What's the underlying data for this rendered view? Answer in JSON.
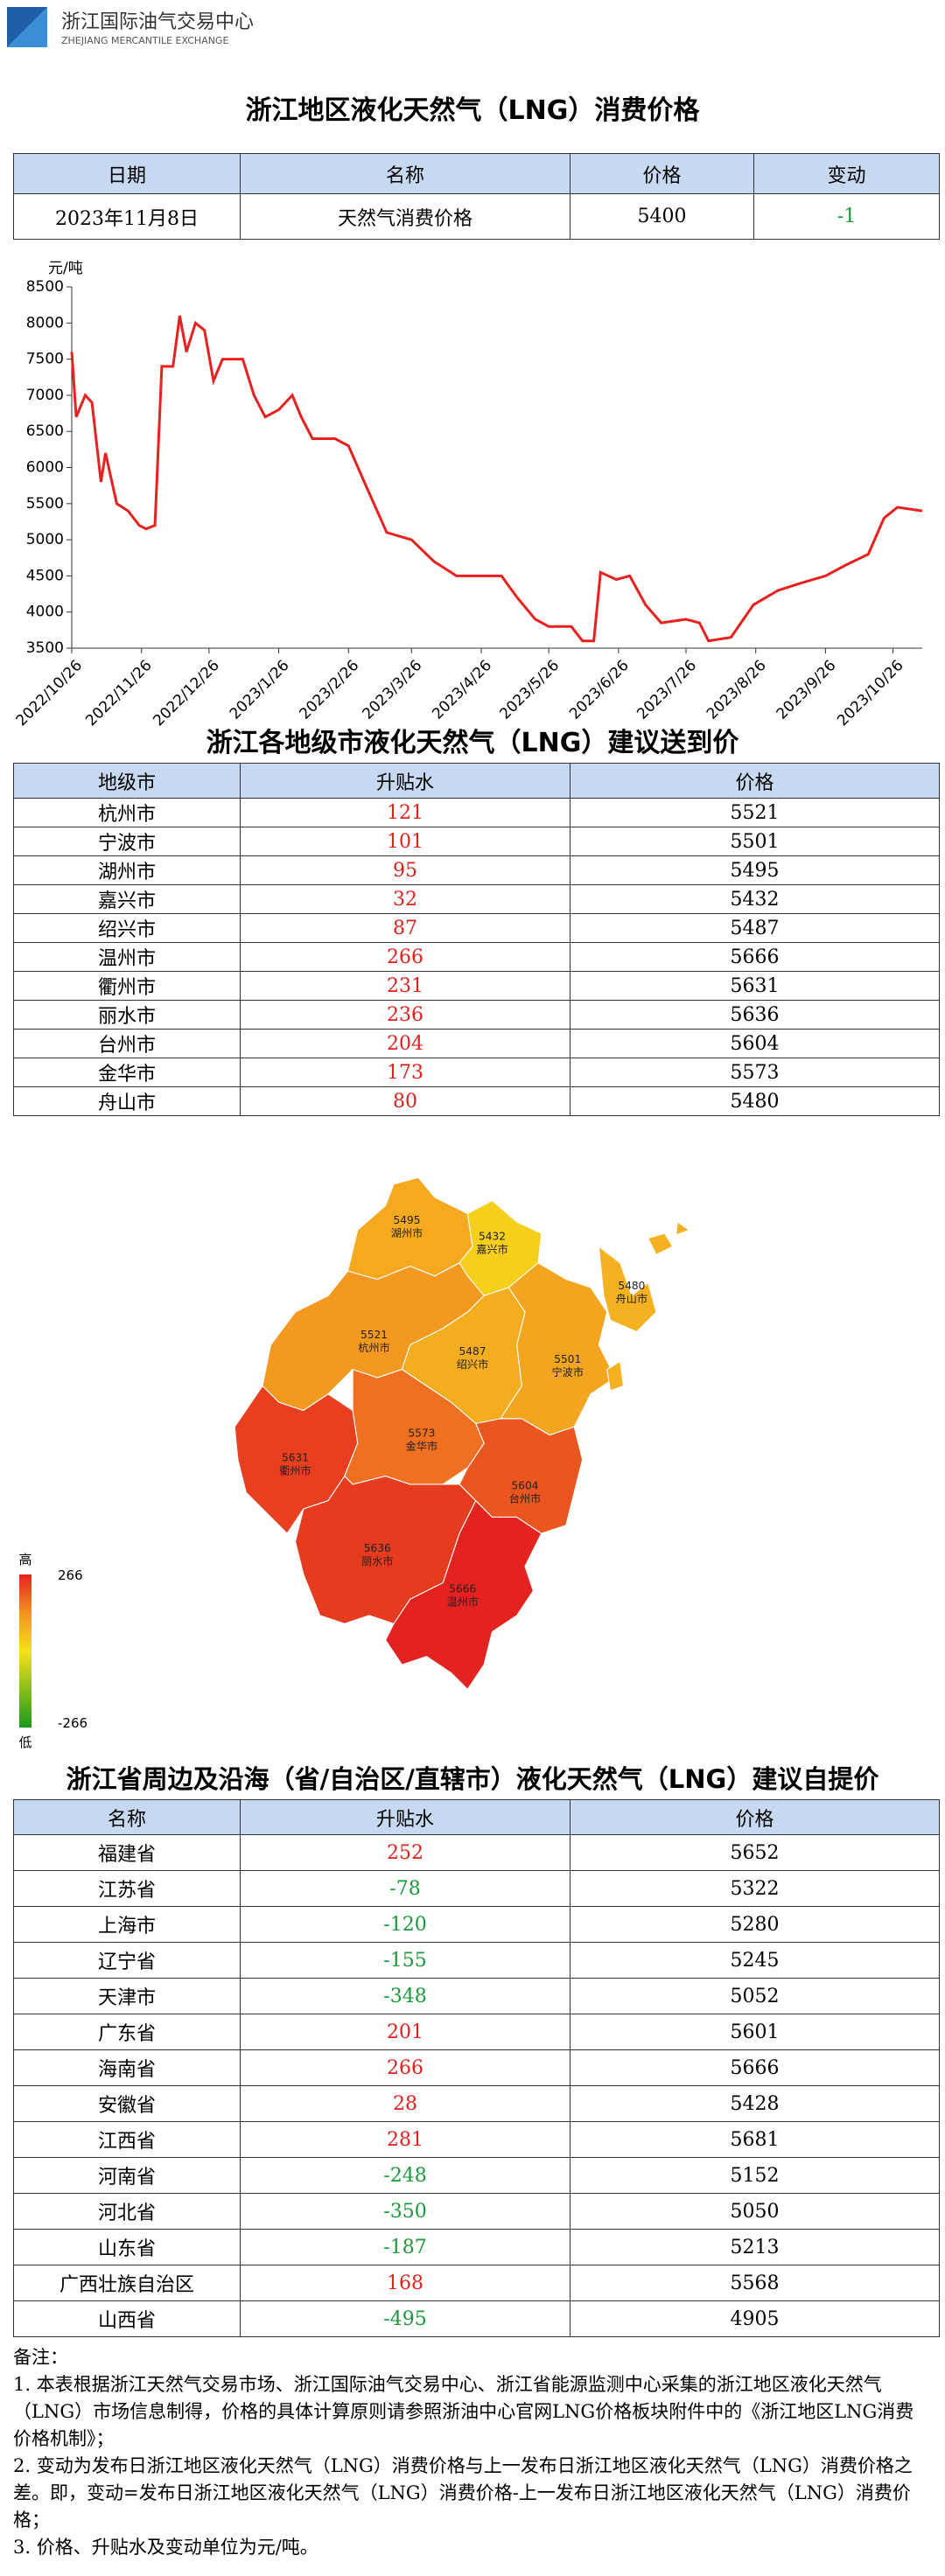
{
  "header": {
    "org": "浙江国际油气交易中心",
    "org_en": "ZHEJIANG MERCANTILE EXCHANGE"
  },
  "title1": "浙江地区液化天然气（LNG）消费价格",
  "table1": {
    "headers": [
      "日期",
      "名称",
      "价格",
      "变动"
    ],
    "rows": [
      [
        "2023年11月8日",
        "天然气消费价格",
        5400,
        -1
      ]
    ]
  },
  "chart_data": {
    "type": "line",
    "y_label": "元/吨",
    "color": "#e8201e",
    "x": [
      "2022/10/26",
      "2022/10/28",
      "2022/11/1",
      "2022/11/4",
      "2022/11/8",
      "2022/11/10",
      "2022/11/15",
      "2022/11/20",
      "2022/11/25",
      "2022/11/28",
      "2022/12/2",
      "2022/12/5",
      "2022/12/10",
      "2022/12/13",
      "2022/12/16",
      "2022/12/20",
      "2022/12/24",
      "2022/12/28",
      "2023/1/1",
      "2023/1/10",
      "2023/1/15",
      "2023/1/20",
      "2023/1/26",
      "2023/2/1",
      "2023/2/5",
      "2023/2/10",
      "2023/2/20",
      "2023/2/26",
      "2023/3/5",
      "2023/3/15",
      "2023/3/26",
      "2023/4/5",
      "2023/4/15",
      "2023/4/26",
      "2023/5/5",
      "2023/5/12",
      "2023/5/20",
      "2023/5/26",
      "2023/6/5",
      "2023/6/10",
      "2023/6/15",
      "2023/6/18",
      "2023/6/25",
      "2023/7/1",
      "2023/7/8",
      "2023/7/15",
      "2023/7/26",
      "2023/8/1",
      "2023/8/5",
      "2023/8/15",
      "2023/8/25",
      "2023/9/5",
      "2023/9/15",
      "2023/9/26",
      "2023/10/5",
      "2023/10/15",
      "2023/10/22",
      "2023/10/28",
      "2023/11/8"
    ],
    "values": [
      7600,
      6700,
      7000,
      6900,
      5800,
      6200,
      5500,
      5400,
      5200,
      5150,
      5200,
      7400,
      7400,
      8100,
      7600,
      8000,
      7900,
      7200,
      7500,
      7500,
      7000,
      6700,
      6800,
      7000,
      6700,
      6400,
      6400,
      6300,
      5800,
      5100,
      5000,
      4700,
      4500,
      4500,
      4500,
      4200,
      3900,
      3800,
      3800,
      3600,
      3600,
      4550,
      4450,
      4500,
      4100,
      3850,
      3900,
      3850,
      3600,
      3650,
      4100,
      4300,
      4400,
      4500,
      4650,
      4800,
      5300,
      5450,
      5400
    ],
    "xlim": [
      "2022/10/26",
      "2023/11/8"
    ],
    "xticks": [
      "2022/10/26",
      "2022/11/26",
      "2022/12/26",
      "2023/1/26",
      "2023/2/26",
      "2023/3/26",
      "2023/4/26",
      "2023/5/26",
      "2023/6/26",
      "2023/7/26",
      "2023/8/26",
      "2023/9/26",
      "2023/10/26"
    ],
    "ylim": [
      3500,
      8500
    ],
    "yticks": [
      3500,
      4000,
      4500,
      5000,
      5500,
      6000,
      6500,
      7000,
      7500,
      8000,
      8500
    ]
  },
  "title2": "浙江各地级市液化天然气（LNG）建议送到价",
  "table2": {
    "headers": [
      "地级市",
      "升贴水",
      "价格"
    ],
    "rows": [
      [
        "杭州市",
        121,
        5521
      ],
      [
        "宁波市",
        101,
        5501
      ],
      [
        "湖州市",
        95,
        5495
      ],
      [
        "嘉兴市",
        32,
        5432
      ],
      [
        "绍兴市",
        87,
        5487
      ],
      [
        "温州市",
        266,
        5666
      ],
      [
        "衢州市",
        231,
        5631
      ],
      [
        "丽水市",
        236,
        5636
      ],
      [
        "台州市",
        204,
        5604
      ],
      [
        "金华市",
        173,
        5573
      ],
      [
        "舟山市",
        80,
        5480
      ]
    ]
  },
  "map_legend": {
    "high": "高",
    "low": "低",
    "max": 266,
    "min": -266
  },
  "title3": "浙江省周边及沿海（省/自治区/直辖市）液化天然气（LNG）建议自提价",
  "table3": {
    "headers": [
      "名称",
      "升贴水",
      "价格"
    ],
    "rows": [
      [
        "福建省",
        252,
        5652
      ],
      [
        "江苏省",
        -78,
        5322
      ],
      [
        "上海市",
        -120,
        5280
      ],
      [
        "辽宁省",
        -155,
        5245
      ],
      [
        "天津市",
        -348,
        5052
      ],
      [
        "广东省",
        201,
        5601
      ],
      [
        "海南省",
        266,
        5666
      ],
      [
        "安徽省",
        28,
        5428
      ],
      [
        "江西省",
        281,
        5681
      ],
      [
        "河南省",
        -248,
        5152
      ],
      [
        "河北省",
        -350,
        5050
      ],
      [
        "山东省",
        -187,
        5213
      ],
      [
        "广西壮族自治区",
        168,
        5568
      ],
      [
        "山西省",
        -495,
        4905
      ]
    ]
  },
  "notes": [
    "备注：",
    "1. 本表根据浙江天然气交易市场、浙江国际油气交易中心、浙江省能源监测中心采集的浙江地区液化天然气（LNG）市场信息制得，价格的具体计算原则请参照浙油中心官网LNG价格板块附件中的《浙江地区LNG消费价格机制》；",
    "2. 变动为发布日浙江地区液化天然气（LNG）消费价格与上一发布日浙江地区液化天然气（LNG）消费价格之差。即，变动=发布日浙江地区液化天然气（LNG）消费价格-上一发布日浙江地区液化天然气（LNG）消费价格；",
    "3. 价格、升贴水及变动单位为元/吨。"
  ]
}
